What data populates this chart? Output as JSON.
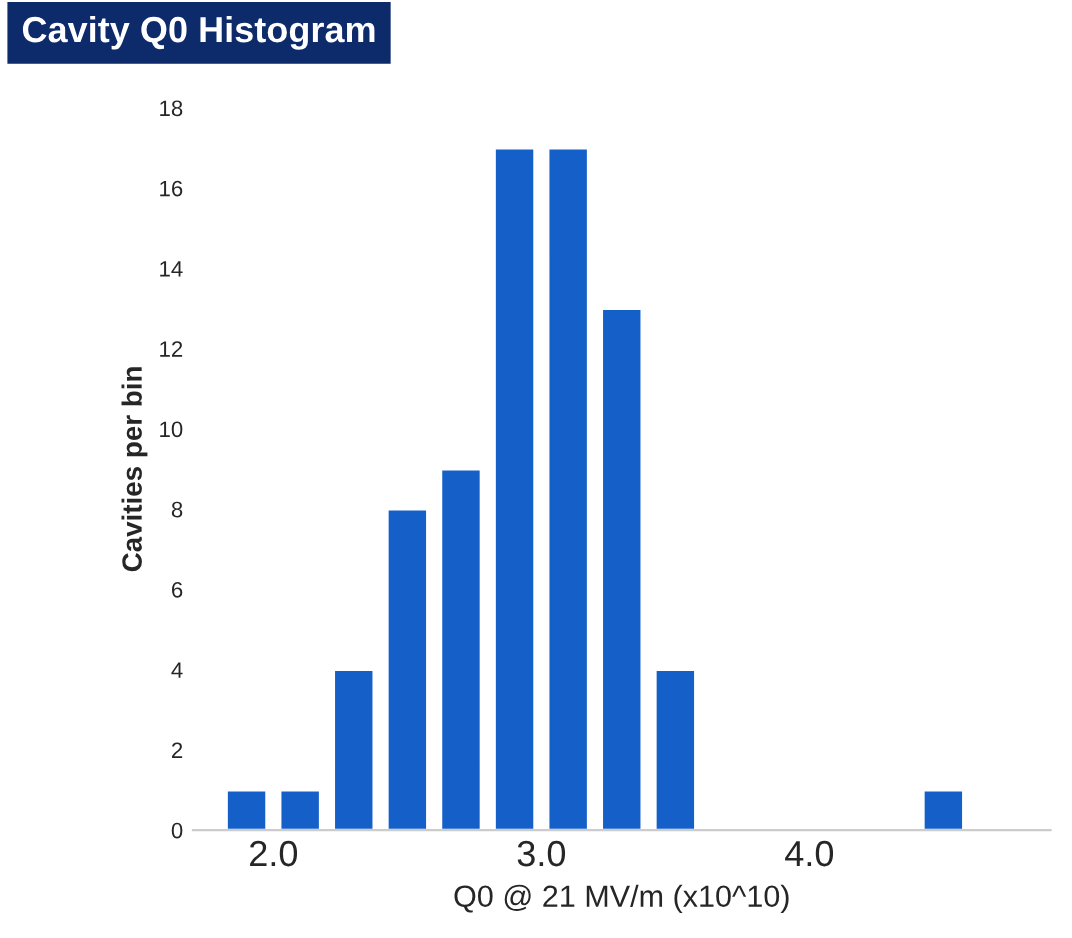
{
  "chart_data": {
    "type": "histogram",
    "title": "Cavity Q0 Histogram",
    "xlabel": "Q0 @ 21 MV/m (x10^10)",
    "ylabel": "Cavities per bin",
    "bins": [
      1.8,
      2.0,
      2.2,
      2.4,
      2.6,
      2.8,
      3.0,
      3.2,
      3.4,
      3.6,
      3.8,
      4.0,
      4.2,
      4.4,
      4.6
    ],
    "values": [
      1,
      1,
      4,
      8,
      9,
      17,
      17,
      13,
      4,
      0,
      0,
      0,
      0,
      1
    ],
    "color": "#1560c8",
    "xlim": [
      1.7,
      4.9
    ],
    "xticks": [
      {
        "value": 2.0,
        "label": "2.0"
      },
      {
        "value": 3.0,
        "label": "3.0"
      },
      {
        "value": 4.0,
        "label": "4.0"
      }
    ],
    "ylim": [
      0,
      18
    ],
    "yticks": [
      0,
      2,
      4,
      6,
      8,
      10,
      12,
      14,
      16,
      18
    ],
    "grid": false
  }
}
